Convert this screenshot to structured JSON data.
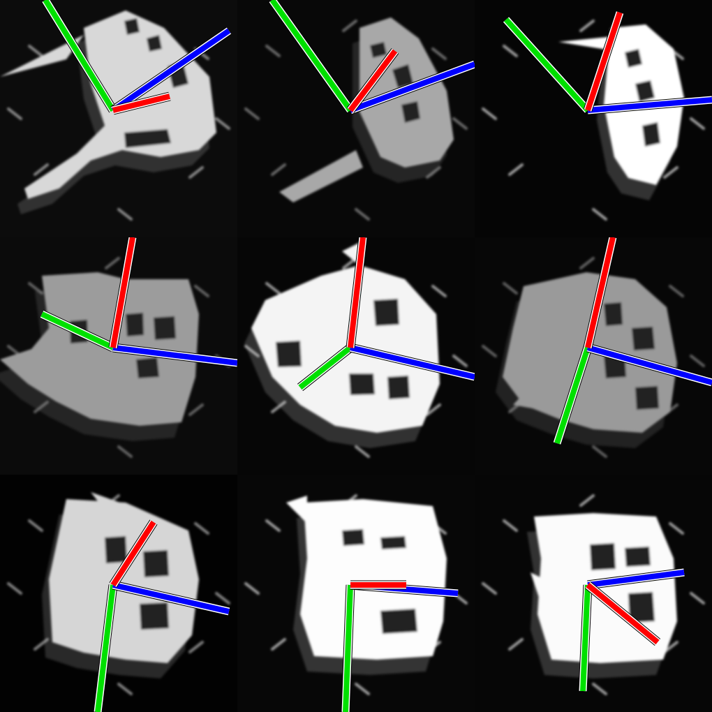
{
  "grid": {
    "rows": 3,
    "columns": 3
  },
  "colors": {
    "x_axis": "#ff0000",
    "y_axis": "#00e000",
    "z_axis": "#0000ff",
    "outline": "#000000",
    "inner_outline": "#ffffff"
  },
  "panels": [
    {
      "row": 0,
      "col": 0,
      "background": "#0c0c0c",
      "body": "#d8d8d8"
    },
    {
      "row": 0,
      "col": 1,
      "background": "#080808",
      "body": "#a8a8a8"
    },
    {
      "row": 0,
      "col": 2,
      "background": "#050505",
      "body": "#ffffff"
    },
    {
      "row": 1,
      "col": 0,
      "background": "#0b0b0b",
      "body": "#9c9c9c"
    },
    {
      "row": 1,
      "col": 1,
      "background": "#060606",
      "body": "#f4f4f4"
    },
    {
      "row": 1,
      "col": 2,
      "background": "#070707",
      "body": "#9a9a9a"
    },
    {
      "row": 2,
      "col": 0,
      "background": "#020202",
      "body": "#d6d6d6"
    },
    {
      "row": 2,
      "col": 1,
      "background": "#070707",
      "body": "#fdfdfd"
    },
    {
      "row": 2,
      "col": 2,
      "background": "#060606",
      "body": "#fbfbfb"
    }
  ]
}
